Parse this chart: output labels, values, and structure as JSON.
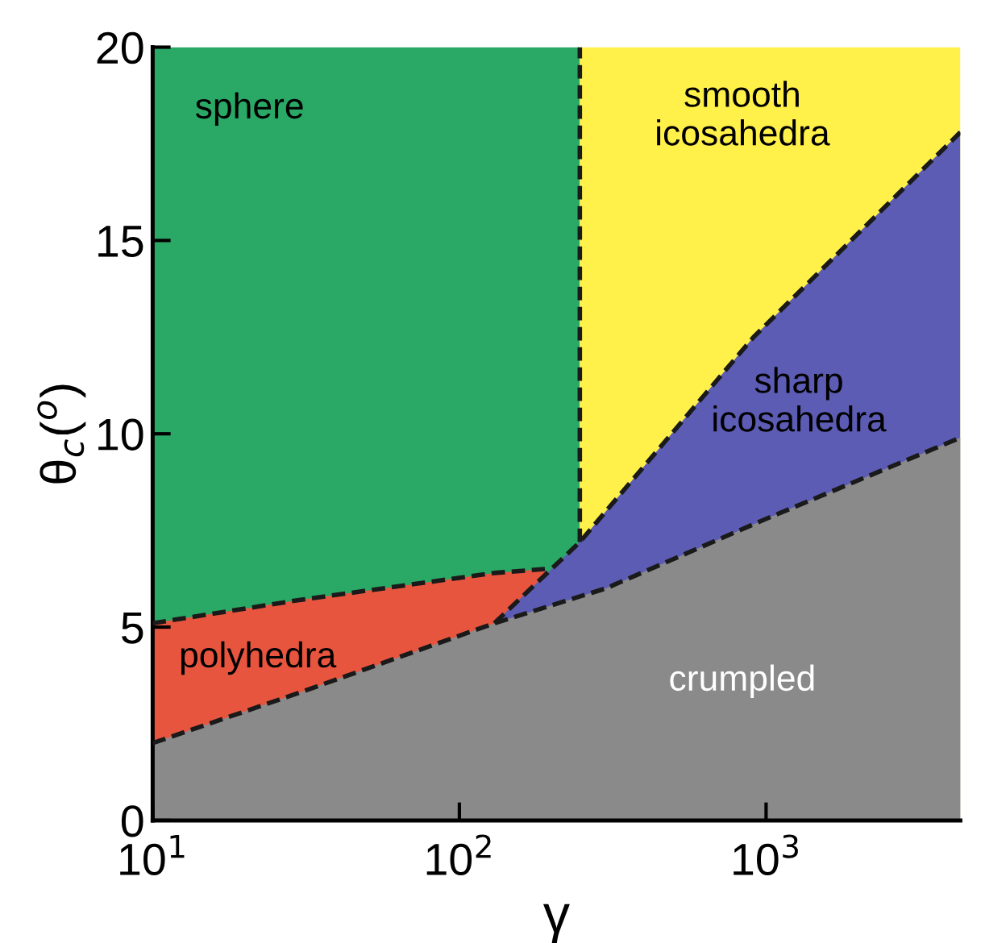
{
  "chart_data": {
    "type": "line",
    "xlabel": "γ",
    "ylabel": "θ$_{c}$($^{o}$)",
    "log": "x",
    "xlim": [
      10,
      4300
    ],
    "xticks": [
      {
        "value": 10,
        "label": "10$^{1}$"
      },
      {
        "value": 100,
        "label": "10$^{2}$"
      },
      {
        "value": 1000,
        "label": "10$^{3}$"
      }
    ],
    "ylim": [
      0,
      20
    ],
    "yticks": [
      0,
      5,
      10,
      15,
      20
    ],
    "grid": false,
    "legend": false,
    "series": [
      {
        "type": "area",
        "color": "#2aa866",
        "x": [
          10,
          247
        ],
        "values": [
          20,
          20
        ]
      },
      {
        "type": "area",
        "color": "#fff04a",
        "x": [
          247,
          4300
        ],
        "values": [
          20,
          20
        ]
      },
      {
        "type": "area",
        "color": "#e8553f",
        "line_style": "dashed",
        "x": [
          10,
          30,
          130,
          190
        ],
        "values": [
          5.1,
          5.7,
          6.4,
          6.5
        ]
      },
      {
        "type": "area",
        "color": "#5c5cb4",
        "line_style": "dashed",
        "x": [
          130,
          247,
          910,
          4300
        ],
        "values": [
          5.1,
          7.2,
          12.5,
          17.8
        ]
      },
      {
        "type": "area",
        "color": "#8a8a8a",
        "line_style": "dashed",
        "x": [
          10,
          30,
          130,
          300,
          1000,
          4300
        ],
        "values": [
          2.0,
          3.3,
          5.1,
          6.0,
          7.8,
          9.9
        ]
      },
      {
        "color": "#1a1a1a",
        "line_style": "dashed",
        "x": [
          247,
          247
        ],
        "values": [
          7.2,
          20
        ]
      }
    ],
    "annotations": [
      "sphere",
      "smooth\nicosahedra",
      "sharp\nicosahedra",
      "polyhedra",
      "crumpled"
    ]
  }
}
